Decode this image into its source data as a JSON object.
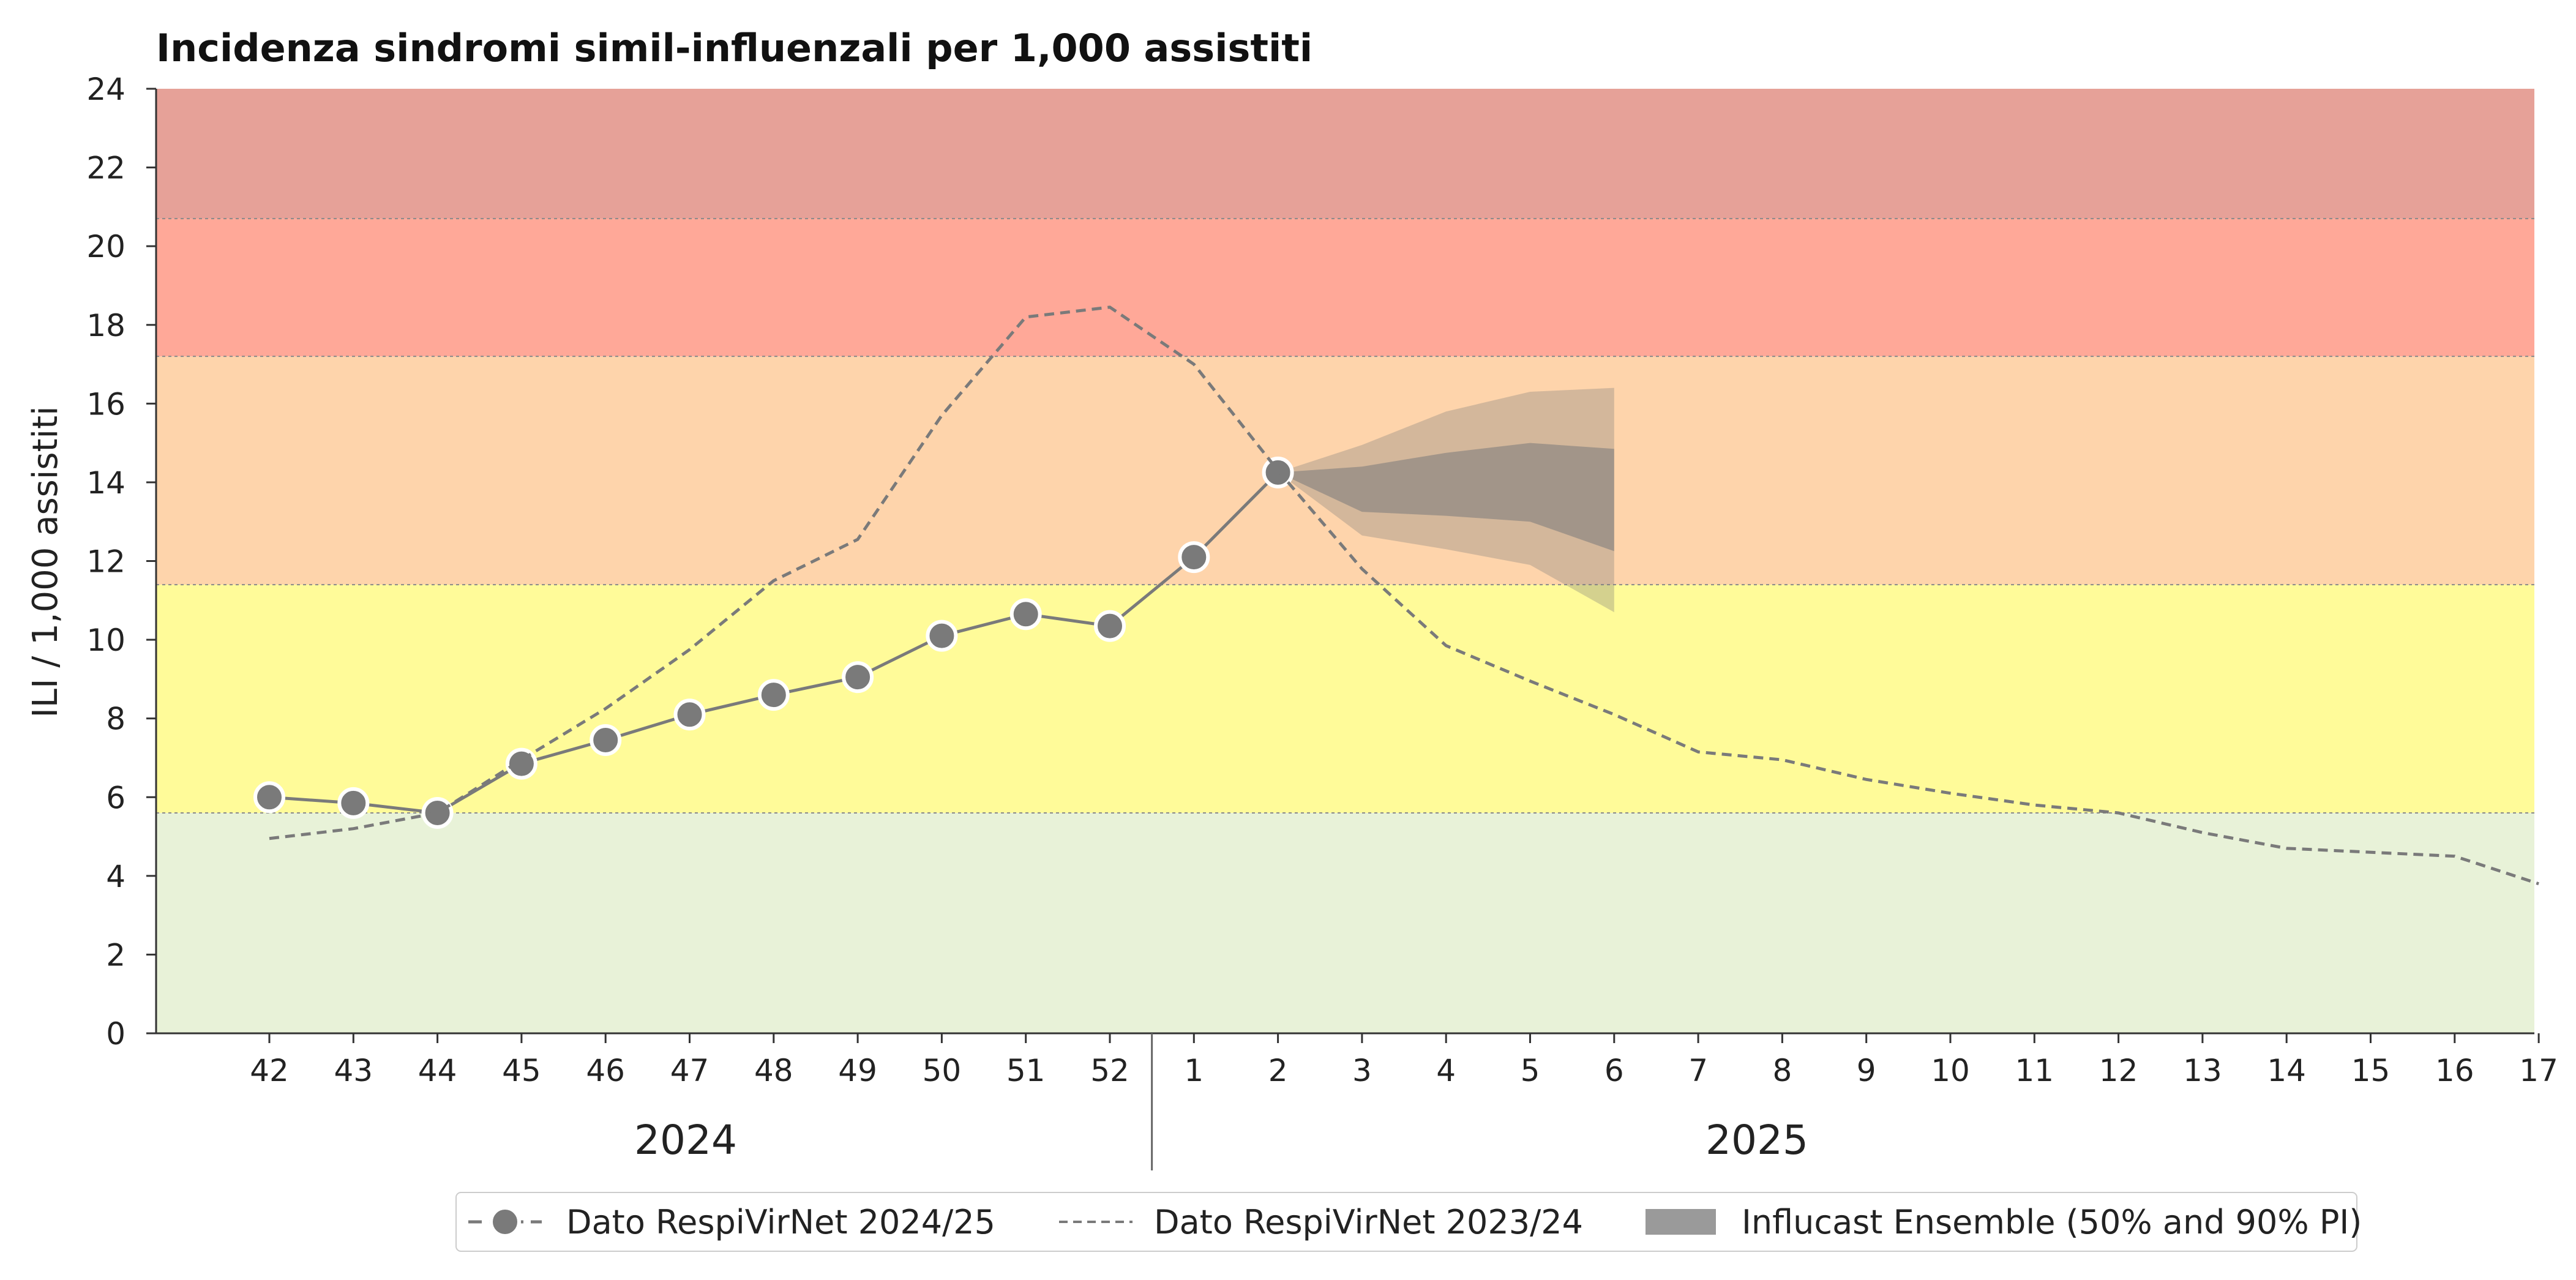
{
  "chart_data": {
    "type": "line",
    "title": "Incidenza sindromi simil-influenzali per 1,000 assistiti",
    "ylabel": "ILI / 1,000 assistiti",
    "xlabel": "",
    "ylim": [
      0,
      24
    ],
    "y_ticks": [
      0,
      2,
      4,
      6,
      8,
      10,
      12,
      14,
      16,
      18,
      20,
      22,
      24
    ],
    "x_categories": [
      "42",
      "43",
      "44",
      "45",
      "46",
      "47",
      "48",
      "49",
      "50",
      "51",
      "52",
      "1",
      "2",
      "3",
      "4",
      "5",
      "6",
      "7",
      "8",
      "9",
      "10",
      "11",
      "12",
      "13",
      "14",
      "15",
      "16",
      "17"
    ],
    "year_groups": [
      {
        "label": "2024",
        "from": "42",
        "to": "52"
      },
      {
        "label": "2025",
        "from": "1",
        "to": "17"
      }
    ],
    "threshold_bands": [
      {
        "from": 0,
        "to": 5.6,
        "color": "#e8f2d8"
      },
      {
        "from": 5.6,
        "to": 11.4,
        "color": "#fffb99"
      },
      {
        "from": 11.4,
        "to": 17.2,
        "color": "#fed4ab"
      },
      {
        "from": 17.2,
        "to": 20.7,
        "color": "#ffa898"
      },
      {
        "from": 20.7,
        "to": 24,
        "color": "#e6a198"
      }
    ],
    "series": [
      {
        "name": "Dato RespiVirNet 2024/25",
        "style": "solid-markers",
        "color": "#7a7a7a",
        "x": [
          "42",
          "43",
          "44",
          "45",
          "46",
          "47",
          "48",
          "49",
          "50",
          "51",
          "52",
          "1",
          "2"
        ],
        "values": [
          6.0,
          5.85,
          5.6,
          6.85,
          7.45,
          8.1,
          8.6,
          9.05,
          10.1,
          10.65,
          10.35,
          12.1,
          14.25
        ]
      },
      {
        "name": "Dato RespiVirNet 2023/24",
        "style": "dashed",
        "color": "#7a7a7a",
        "x": [
          "42",
          "43",
          "44",
          "45",
          "46",
          "47",
          "48",
          "49",
          "50",
          "51",
          "52",
          "1",
          "2",
          "3",
          "4",
          "5",
          "6",
          "7",
          "8",
          "9",
          "10",
          "11",
          "12",
          "13",
          "14",
          "15",
          "16",
          "17"
        ],
        "values": [
          4.95,
          5.2,
          5.6,
          6.95,
          8.25,
          9.75,
          11.5,
          12.55,
          15.7,
          18.2,
          18.45,
          17.0,
          14.3,
          11.8,
          9.85,
          8.95,
          8.1,
          7.15,
          6.95,
          6.45,
          6.1,
          5.8,
          5.6,
          5.1,
          4.7,
          4.6,
          4.5,
          3.8
        ]
      }
    ],
    "forecast": {
      "name": "Influcast Ensemble (50% and 90% PI)",
      "color": "#7a7a7a",
      "x": [
        "2",
        "3",
        "4",
        "5",
        "6"
      ],
      "pi90_lower": [
        14.25,
        12.65,
        12.3,
        11.9,
        10.7
      ],
      "pi90_upper": [
        14.25,
        14.95,
        15.8,
        16.3,
        16.4
      ],
      "pi50_lower": [
        14.25,
        13.25,
        13.15,
        13.0,
        12.25
      ],
      "pi50_upper": [
        14.25,
        14.4,
        14.75,
        15.0,
        14.85
      ]
    },
    "legend": {
      "placement": "bottom-center",
      "entries": [
        "Dato RespiVirNet 2024/25",
        "Dato RespiVirNet 2023/24",
        "Influcast Ensemble (50% and 90% PI)"
      ]
    },
    "grid": false
  }
}
